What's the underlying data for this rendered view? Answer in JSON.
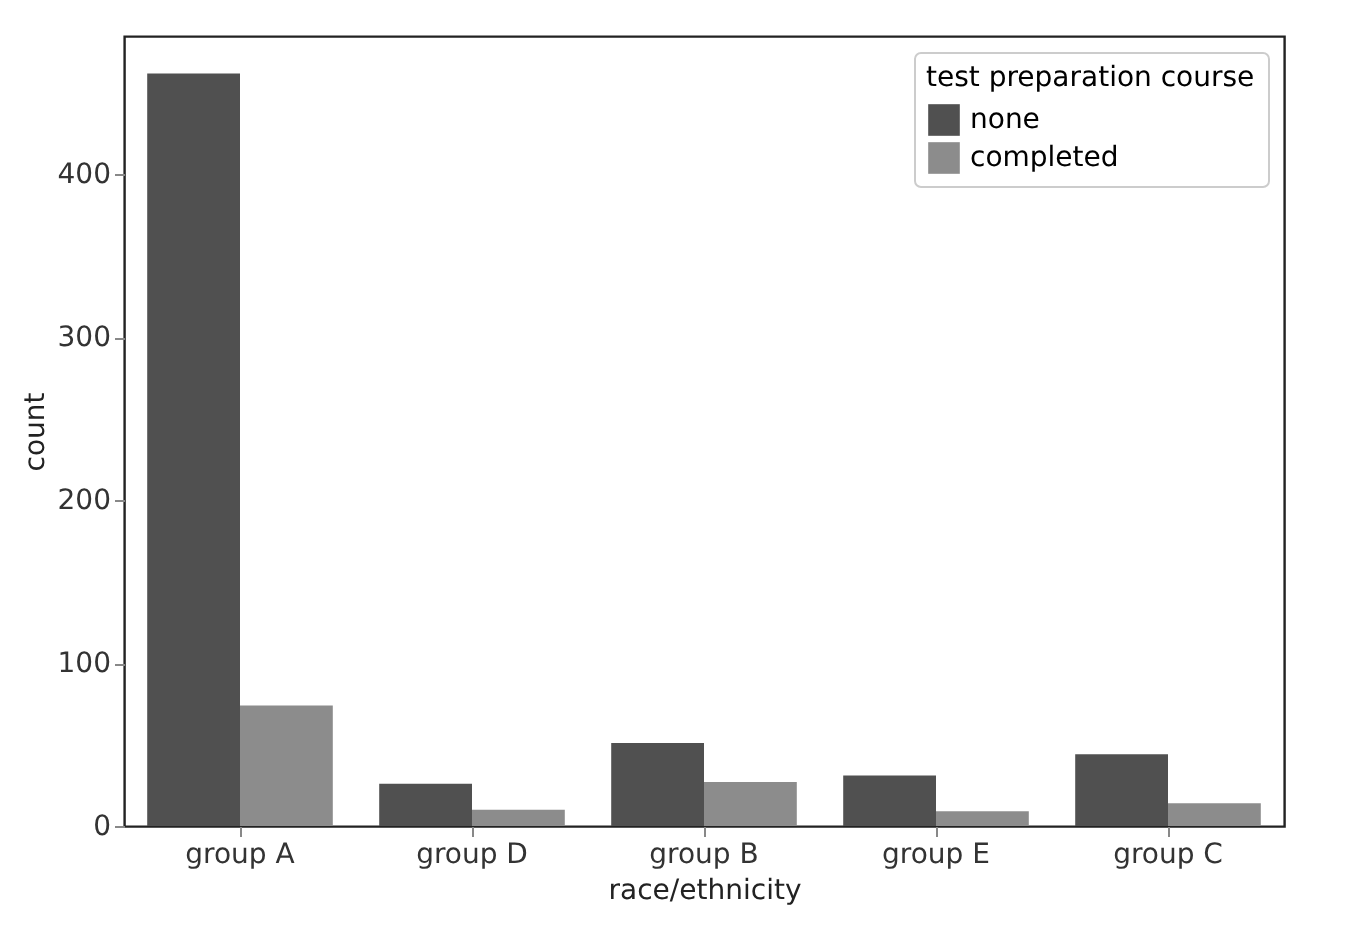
{
  "chart_data": {
    "type": "bar",
    "xlabel": "race/ethnicity",
    "ylabel": "count",
    "legend_title": "test preparation course",
    "categories": [
      "group A",
      "group D",
      "group B",
      "group E",
      "group C"
    ],
    "series": [
      {
        "name": "none",
        "color": "#505050",
        "values": [
          462,
          26,
          51,
          31,
          44
        ]
      },
      {
        "name": "completed",
        "color": "#8c8c8c",
        "values": [
          74,
          10,
          27,
          9,
          14
        ]
      }
    ],
    "ylim": [
      0,
      485
    ],
    "yticks": [
      0,
      100,
      200,
      300,
      400
    ],
    "grid": false,
    "legend": "top right"
  }
}
